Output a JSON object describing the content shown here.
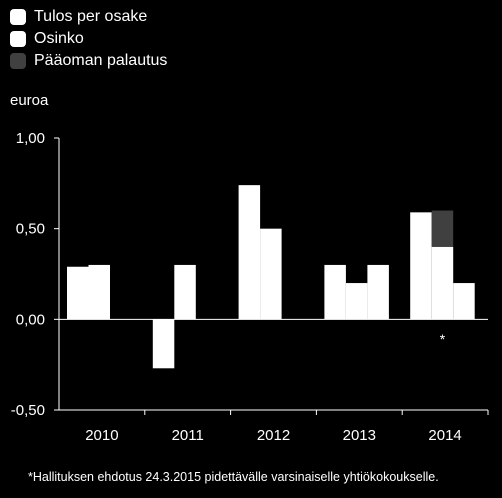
{
  "chart_data": {
    "type": "bar",
    "categories": [
      "2010",
      "2011",
      "2012",
      "2013",
      "2014"
    ],
    "series": [
      {
        "name": "Tulos per osake",
        "color": "#ffffff",
        "values": [
          0.29,
          -0.27,
          0.74,
          0.3,
          0.59
        ]
      },
      {
        "name": "Osinko",
        "color": "#ffffff",
        "values": [
          0.3,
          0.3,
          0.5,
          0.2,
          0.4
        ]
      },
      {
        "name": "Pääoman palautus",
        "color": "#404040",
        "values": [
          0,
          0,
          0,
          0,
          0.2
        ],
        "stacked_on": "Osinko"
      },
      {
        "name": "",
        "color": "#ffffff",
        "values": [
          0,
          0,
          0,
          0.3,
          0.2
        ],
        "note": "third bar per year"
      }
    ],
    "ylabel": "euroa",
    "ylim": [
      -0.5,
      1.0
    ],
    "yticks": [
      "1,00",
      "0,50",
      "0,00",
      "-0,50"
    ],
    "ytick_values": [
      1.0,
      0.5,
      0.0,
      -0.5
    ],
    "grid": false,
    "legend_position": "top-left",
    "annotation": "*",
    "annotation_category": "2014",
    "footnote": "*Hallituksen ehdotus 24.3.2015 pidettävälle varsinaiselle yhtiökokoukselle."
  }
}
